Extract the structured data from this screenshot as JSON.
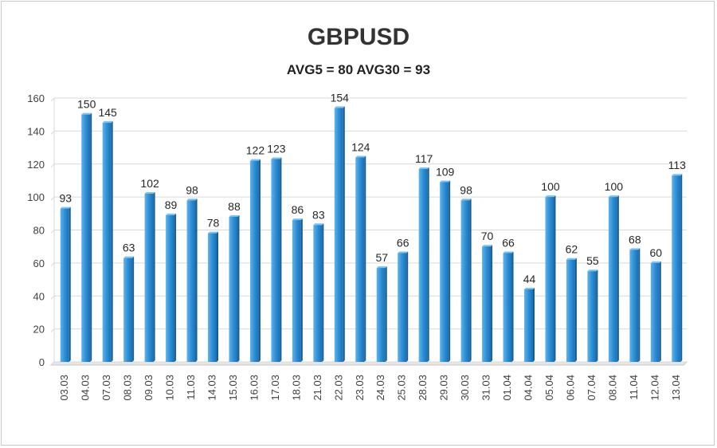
{
  "chart_data": {
    "type": "bar",
    "title": "GBPUSD",
    "subtitle": "AVG5 = 80 AVG30 = 93",
    "xlabel": "",
    "ylabel": "",
    "ylim": [
      0,
      160
    ],
    "yticks": [
      0,
      20,
      40,
      60,
      80,
      100,
      120,
      140,
      160
    ],
    "grid": true,
    "legend": "none",
    "bar_color": "#2e8fd6",
    "categories": [
      "03.03",
      "04.03",
      "07.03",
      "08.03",
      "09.03",
      "10.03",
      "11.03",
      "14.03",
      "15.03",
      "16.03",
      "17.03",
      "18.03",
      "21.03",
      "22.03",
      "23.03",
      "24.03",
      "25.03",
      "28.03",
      "29.03",
      "30.03",
      "31.03",
      "01.04",
      "04.04",
      "05.04",
      "06.04",
      "07.04",
      "08.04",
      "11.04",
      "12.04",
      "13.04"
    ],
    "values": [
      93,
      150,
      145,
      63,
      102,
      89,
      98,
      78,
      88,
      122,
      123,
      86,
      83,
      154,
      124,
      57,
      66,
      117,
      109,
      98,
      70,
      66,
      44,
      100,
      62,
      55,
      100,
      68,
      60,
      113
    ]
  }
}
